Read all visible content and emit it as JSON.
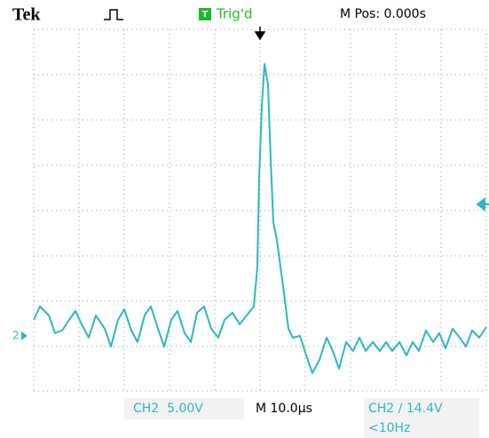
{
  "header": {
    "brand": "Tek",
    "trigger_icon": "T",
    "status": "Trig'd",
    "position": "M Pos: 0.000s"
  },
  "screen": {
    "channel_marker": "2"
  },
  "footer": {
    "channel": "CH2  5.00V",
    "timebase": "M 10.0µs",
    "trigger": "CH2 ∕ 14.4V",
    "frequency": "<10Hz"
  }
}
